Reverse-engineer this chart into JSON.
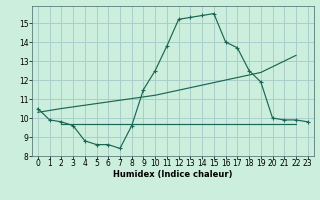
{
  "xlabel": "Humidex (Indice chaleur)",
  "bg_color": "#cceedd",
  "grid_color": "#aacccc",
  "line_color": "#1a6655",
  "xlim": [
    -0.5,
    23.5
  ],
  "ylim": [
    8,
    15.9
  ],
  "yticks": [
    8,
    9,
    10,
    11,
    12,
    13,
    14,
    15
  ],
  "xticks": [
    0,
    1,
    2,
    3,
    4,
    5,
    6,
    7,
    8,
    9,
    10,
    11,
    12,
    13,
    14,
    15,
    16,
    17,
    18,
    19,
    20,
    21,
    22,
    23
  ],
  "line1_x": [
    0,
    1,
    2,
    3,
    4,
    5,
    6,
    7,
    8,
    9,
    10,
    11,
    12,
    13,
    14,
    15,
    16,
    17,
    18,
    19,
    20,
    21,
    22,
    23
  ],
  "line1_y": [
    10.5,
    9.9,
    9.8,
    9.6,
    8.8,
    8.6,
    8.6,
    8.4,
    9.6,
    11.5,
    12.5,
    13.8,
    15.2,
    15.3,
    15.4,
    15.5,
    14.0,
    13.7,
    12.5,
    11.9,
    10.0,
    9.9,
    9.9,
    9.8
  ],
  "line2_x": [
    0,
    2,
    10,
    19,
    22
  ],
  "line2_y": [
    10.3,
    10.5,
    11.2,
    12.4,
    13.3
  ],
  "line3_x": [
    2,
    9,
    19,
    22
  ],
  "line3_y": [
    9.7,
    9.7,
    9.7,
    9.7
  ]
}
